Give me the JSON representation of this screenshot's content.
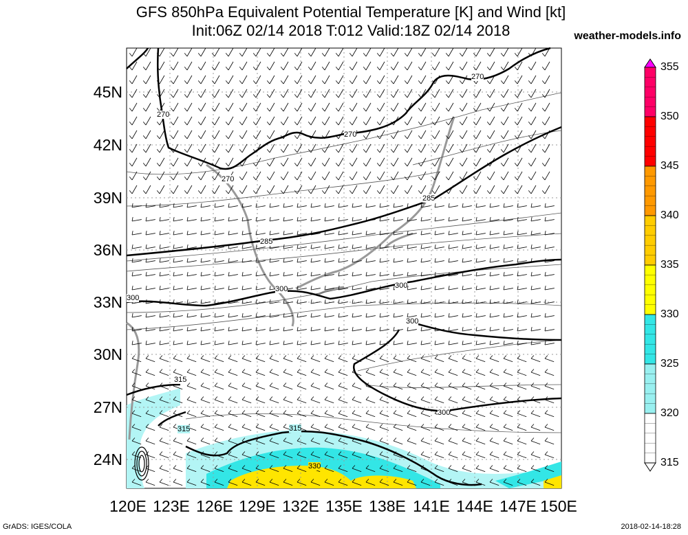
{
  "title": {
    "line1": "GFS 850hPa Equivalent Potential Temperature [K] and Wind [kt]",
    "line2": "Init:06Z 02/14 2018 T:012 Valid:18Z 02/14 2018"
  },
  "site": "weather-models.info",
  "footer": {
    "left": "GrADS: IGES/COLA",
    "right": "2018-02-14-18:28"
  },
  "map": {
    "lat_ticks": [
      "45N",
      "42N",
      "39N",
      "36N",
      "33N",
      "30N",
      "27N",
      "24N"
    ],
    "lon_ticks": [
      "120E",
      "123E",
      "126E",
      "129E",
      "132E",
      "135E",
      "138E",
      "141E",
      "144E",
      "147E",
      "150E"
    ],
    "contour_labels": [
      "270",
      "270",
      "270",
      "270",
      "285",
      "285",
      "300",
      "300",
      "300",
      "300",
      "315",
      "315",
      "315",
      "330"
    ]
  },
  "colorbar": {
    "labels": [
      "355",
      "350",
      "345",
      "340",
      "335",
      "330",
      "325",
      "320",
      "315"
    ],
    "colors": [
      "#ff00ff",
      "#ff0066",
      "#ff0000",
      "#ff9900",
      "#ffcc00",
      "#ffff00",
      "#33e6e6",
      "#99f0f0",
      "#ffffff"
    ]
  }
}
